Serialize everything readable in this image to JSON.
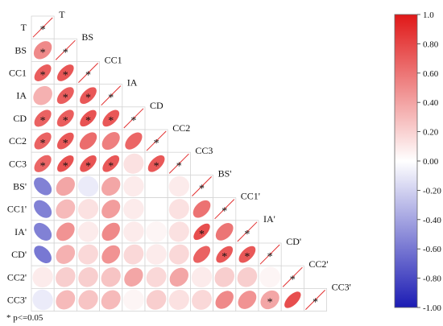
{
  "chart_data": {
    "type": "heatmap",
    "variables": [
      "T",
      "BS",
      "CC1",
      "IA",
      "CD",
      "CC2",
      "CC3",
      "BS'",
      "CC1'",
      "IA'",
      "CD'",
      "CC2'",
      "CC3'"
    ],
    "matrix": [
      [
        1.0
      ],
      [
        0.6,
        1.0
      ],
      [
        0.82,
        0.86,
        1.0
      ],
      [
        0.4,
        0.82,
        0.85,
        1.0
      ],
      [
        0.8,
        0.82,
        0.88,
        0.85,
        1.0
      ],
      [
        0.8,
        0.85,
        0.75,
        0.65,
        0.78,
        1.0
      ],
      [
        0.78,
        0.88,
        0.87,
        0.85,
        0.15,
        0.85,
        1.0
      ],
      [
        -0.65,
        0.45,
        -0.1,
        0.45,
        0.1,
        0.0,
        0.1,
        1.0
      ],
      [
        -0.65,
        0.35,
        0.15,
        0.5,
        0.1,
        0.0,
        0.15,
        0.72,
        1.0
      ],
      [
        -0.65,
        0.55,
        0.1,
        0.6,
        0.1,
        0.05,
        0.15,
        0.9,
        0.7,
        1.0
      ],
      [
        -0.7,
        0.4,
        0.2,
        0.55,
        0.2,
        0.1,
        0.2,
        0.8,
        0.85,
        0.85,
        1.0
      ],
      [
        0.1,
        0.25,
        0.25,
        0.3,
        0.45,
        0.2,
        0.45,
        0.1,
        0.25,
        0.25,
        0.05,
        1.0
      ],
      [
        -0.1,
        0.35,
        0.3,
        0.35,
        0.05,
        0.25,
        0.15,
        0.2,
        0.6,
        0.55,
        0.45,
        0.9,
        1.0
      ]
    ],
    "significant": [
      [
        1
      ],
      [
        1,
        1
      ],
      [
        1,
        1,
        1
      ],
      [
        0,
        1,
        1,
        1
      ],
      [
        1,
        1,
        1,
        1,
        1
      ],
      [
        1,
        1,
        0,
        0,
        0,
        1
      ],
      [
        1,
        1,
        1,
        1,
        0,
        1,
        1
      ],
      [
        0,
        0,
        0,
        0,
        0,
        0,
        0,
        1
      ],
      [
        0,
        0,
        0,
        0,
        0,
        0,
        0,
        0,
        1
      ],
      [
        0,
        0,
        0,
        0,
        0,
        0,
        0,
        1,
        0,
        1
      ],
      [
        0,
        0,
        0,
        0,
        0,
        0,
        0,
        0,
        1,
        1,
        1
      ],
      [
        0,
        0,
        0,
        0,
        0,
        0,
        0,
        0,
        0,
        0,
        0,
        1
      ],
      [
        0,
        0,
        0,
        0,
        0,
        0,
        0,
        0,
        0,
        0,
        1,
        0,
        1
      ]
    ],
    "colorbar": {
      "range": [
        -1.0,
        1.0
      ],
      "ticks": [
        "1.0",
        "0.80",
        "0.60",
        "0.40",
        "0.20",
        "0.00",
        "-0.20",
        "-0.40",
        "-0.60",
        "-0.80",
        "-1.00"
      ],
      "colors": {
        "negative": "#1c1cb4",
        "zero": "#ffffff",
        "positive": "#e01818"
      }
    },
    "significance_note": "* p<=0.05",
    "star_symbol": "*"
  }
}
